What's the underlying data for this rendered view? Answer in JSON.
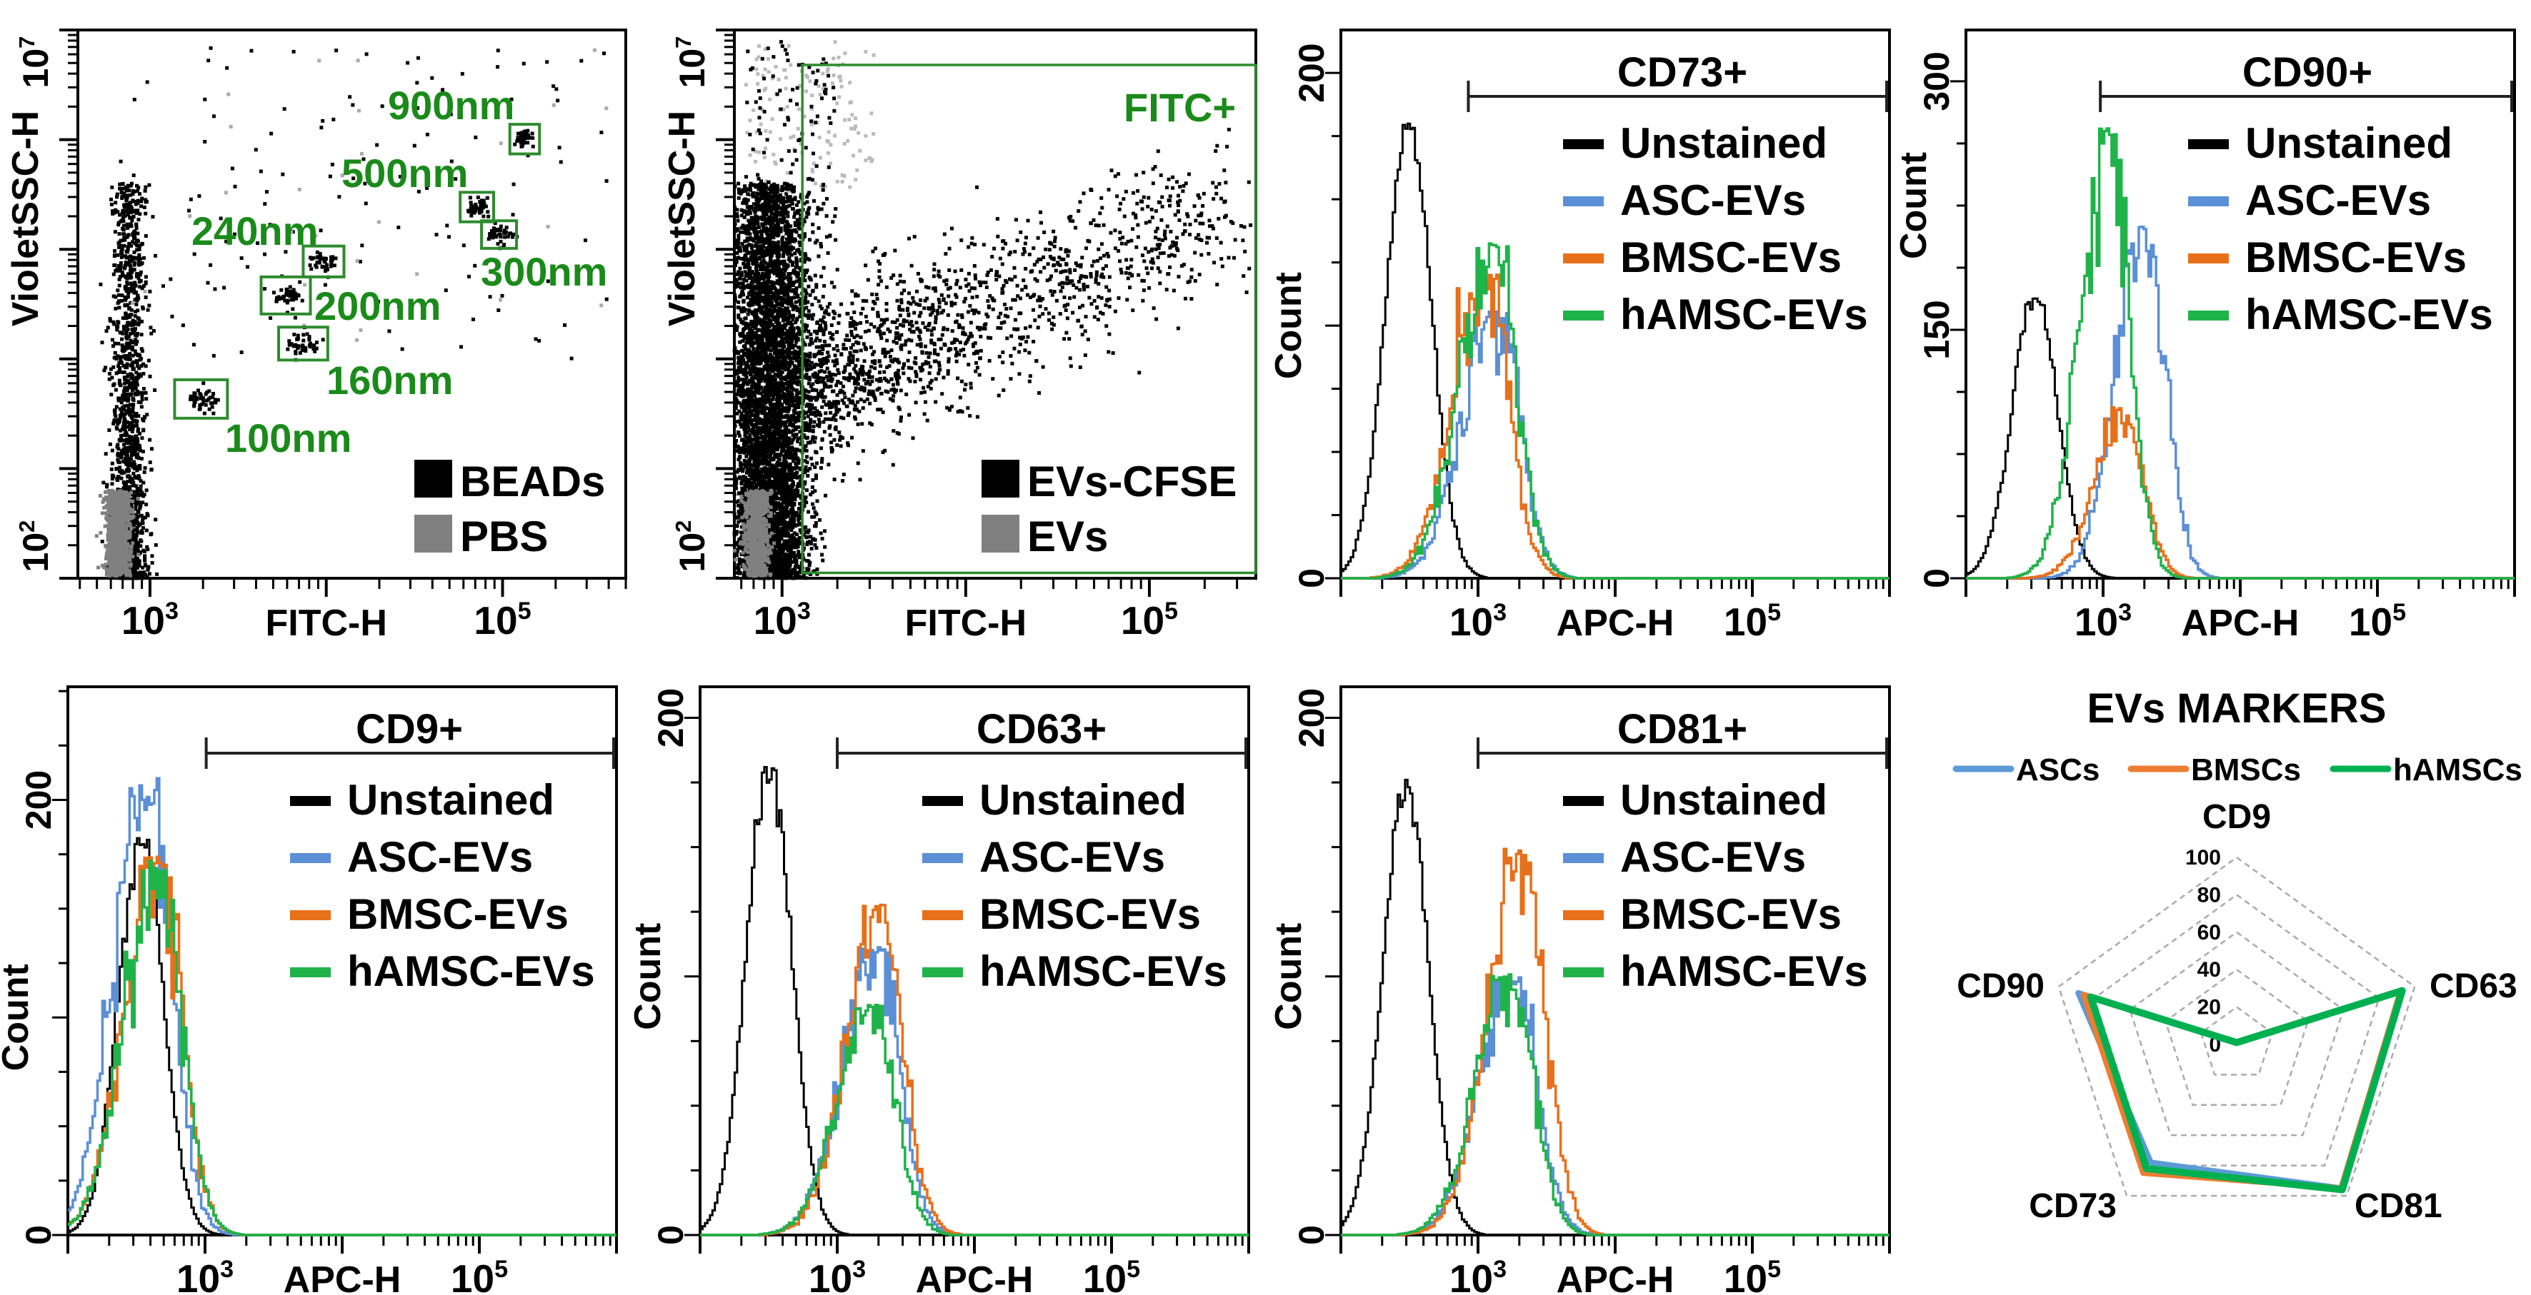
{
  "colors": {
    "unstained": "#000000",
    "asc": "#5b8fd6",
    "bmsc": "#e8701a",
    "hamsc": "#1fb34a",
    "gate": "#2e8b2e",
    "gate_text": "#1a8a1a",
    "beads": "#000000",
    "pbs": "#808080",
    "radar_asc": "#5b9bd5",
    "radar_bmsc": "#ed7d31",
    "radar_hamsc": "#00b050"
  },
  "chart_data": [
    {
      "id": "beads",
      "type": "scatter",
      "xlabel": "FITC-H",
      "ylabel": "VioletSSC-H",
      "xscale": "log",
      "yscale": "log",
      "xlim": [
        390,
        500000
      ],
      "ylim": [
        100,
        10000000
      ],
      "x_ticks": [
        {
          "value": 1000,
          "base": "10",
          "exp": "3"
        },
        {
          "value": 100000,
          "base": "10",
          "exp": "5"
        }
      ],
      "y_ticks": [
        {
          "value": 100,
          "base": "10",
          "exp": "2"
        },
        {
          "value": 10000000,
          "base": "10",
          "exp": "7"
        }
      ],
      "gates": [
        {
          "label": "900nm",
          "x": [
            110000,
            162000
          ],
          "y": [
            741000,
            1380000
          ]
        },
        {
          "label": "500nm",
          "x": [
            57500,
            89000
          ],
          "y": [
            178000,
            331000
          ]
        },
        {
          "label": "240nm",
          "x": [
            7400,
            12600
          ],
          "y": [
            56000,
            107000
          ]
        },
        {
          "label": "300nm",
          "x": [
            76000,
            120000
          ],
          "y": [
            102000,
            182000
          ]
        },
        {
          "label": "200nm",
          "x": [
            4270,
            8130
          ],
          "y": [
            25700,
            56000
          ]
        },
        {
          "label": "160nm",
          "x": [
            5370,
            10200
          ],
          "y": [
            9770,
            19500
          ]
        },
        {
          "label": "100nm",
          "x": [
            1380,
            2750
          ],
          "y": [
            2880,
            6460
          ]
        }
      ],
      "legend": [
        {
          "label": "BEADs",
          "color": "#000000"
        },
        {
          "label": "PBS",
          "color": "#808080"
        }
      ]
    },
    {
      "id": "evs",
      "type": "scatter",
      "xlabel": "FITC-H",
      "ylabel": "VioletSSC-H",
      "xscale": "log",
      "yscale": "log",
      "xlim": [
        550,
        380000
      ],
      "ylim": [
        100,
        10000000
      ],
      "x_ticks": [
        {
          "value": 1000,
          "base": "10",
          "exp": "3"
        },
        {
          "value": 100000,
          "base": "10",
          "exp": "5"
        }
      ],
      "y_ticks": [
        {
          "value": 100,
          "base": "10",
          "exp": "2"
        },
        {
          "value": 10000000,
          "base": "10",
          "exp": "7"
        }
      ],
      "gates": [
        {
          "label": "FITC+",
          "x": [
            1290,
            380000
          ],
          "y": [
            112,
            4800000
          ]
        }
      ],
      "legend": [
        {
          "label": "EVs-CFSE",
          "color": "#000000"
        },
        {
          "label": "EVs",
          "color": "#808080"
        }
      ]
    },
    {
      "id": "cd73",
      "type": "histogram",
      "gate_label": "CD73+",
      "gate_from": 850,
      "xlabel": "APC-H",
      "ylabel": "Count",
      "xscale": "log",
      "xlim": [
        100,
        1000000
      ],
      "ylim": [
        0,
        217
      ],
      "y_ticks": [
        0,
        200
      ],
      "y_minor_step": 25,
      "y_major_step": 100,
      "x_ticks": [
        {
          "value": 1000,
          "base": "10",
          "exp": "3"
        },
        {
          "value": 100000,
          "base": "10",
          "exp": "5"
        }
      ],
      "series": [
        {
          "name": "Unstained",
          "color": "#000000",
          "peak_at": 309,
          "peak_count": 180
        },
        {
          "name": "ASC-EVs",
          "color": "#5b8fd6",
          "peak_at": 1320,
          "peak_count": 106
        },
        {
          "name": "BMSC-EVs",
          "color": "#e8701a",
          "peak_at": 1120,
          "peak_count": 122
        },
        {
          "name": "hAMSC-EVs",
          "color": "#1fb34a",
          "peak_at": 1260,
          "peak_count": 133
        }
      ]
    },
    {
      "id": "cd90",
      "type": "histogram",
      "gate_label": "CD90+",
      "gate_from": 955,
      "xlabel": "APC-H",
      "ylabel": "Count",
      "xscale": "log",
      "xlim": [
        100,
        1000000
      ],
      "ylim": [
        0,
        331
      ],
      "y_ticks": [
        0,
        150,
        300
      ],
      "y_minor_step": 37.5,
      "y_major_step": 150,
      "x_ticks": [
        {
          "value": 1000,
          "base": "10",
          "exp": "3"
        },
        {
          "value": 100000,
          "base": "10",
          "exp": "5"
        }
      ],
      "series": [
        {
          "name": "Unstained",
          "color": "#000000",
          "peak_at": 316,
          "peak_count": 173
        },
        {
          "name": "ASC-EVs",
          "color": "#5b8fd6",
          "peak_at": 1950,
          "peak_count": 217
        },
        {
          "name": "BMSC-EVs",
          "color": "#e8701a",
          "peak_at": 1350,
          "peak_count": 104
        },
        {
          "name": "hAMSC-EVs",
          "color": "#1fb34a",
          "peak_at": 1070,
          "peak_count": 272
        }
      ]
    },
    {
      "id": "cd9",
      "type": "histogram",
      "gate_label": "CD9+",
      "gate_from": 1020,
      "xlabel": "APC-H",
      "ylabel": "Count",
      "xscale": "log",
      "xlim": [
        100,
        1000000
      ],
      "ylim": [
        0,
        252
      ],
      "y_ticks": [
        0,
        200
      ],
      "y_minor_step": 25,
      "y_major_step": 100,
      "x_ticks": [
        {
          "value": 1000,
          "base": "10",
          "exp": "3"
        },
        {
          "value": 100000,
          "base": "10",
          "exp": "5"
        }
      ],
      "series": [
        {
          "name": "Unstained",
          "color": "#000000",
          "peak_at": 339,
          "peak_count": 183
        },
        {
          "name": "ASC-EVs",
          "color": "#5b8fd6",
          "peak_at": 380,
          "peak_count": 211
        },
        {
          "name": "BMSC-EVs",
          "color": "#e8701a",
          "peak_at": 447,
          "peak_count": 174
        },
        {
          "name": "hAMSC-EVs",
          "color": "#1fb34a",
          "peak_at": 447,
          "peak_count": 172
        }
      ]
    },
    {
      "id": "cd63",
      "type": "histogram",
      "gate_label": "CD63+",
      "gate_from": 1000,
      "xlabel": "APC-H",
      "ylabel": "Count",
      "xscale": "log",
      "xlim": [
        100,
        1000000
      ],
      "ylim": [
        0,
        212
      ],
      "y_ticks": [
        0,
        200
      ],
      "y_minor_step": 25,
      "y_major_step": 100,
      "x_ticks": [
        {
          "value": 1000,
          "base": "10",
          "exp": "3"
        },
        {
          "value": 100000,
          "base": "10",
          "exp": "5"
        }
      ],
      "series": [
        {
          "name": "Unstained",
          "color": "#000000",
          "peak_at": 316,
          "peak_count": 181
        },
        {
          "name": "ASC-EVs",
          "color": "#5b8fd6",
          "peak_at": 1860,
          "peak_count": 112
        },
        {
          "name": "BMSC-EVs",
          "color": "#e8701a",
          "peak_at": 2000,
          "peak_count": 129
        },
        {
          "name": "hAMSC-EVs",
          "color": "#1fb34a",
          "peak_at": 1740,
          "peak_count": 89
        }
      ]
    },
    {
      "id": "cd81",
      "type": "histogram",
      "gate_label": "CD81+",
      "gate_from": 1000,
      "xlabel": "APC-H",
      "ylabel": "Count",
      "xscale": "log",
      "xlim": [
        100,
        1000000
      ],
      "ylim": [
        0,
        212
      ],
      "y_ticks": [
        0,
        200
      ],
      "y_minor_step": 25,
      "y_major_step": 100,
      "x_ticks": [
        {
          "value": 1000,
          "base": "10",
          "exp": "3"
        },
        {
          "value": 100000,
          "base": "10",
          "exp": "5"
        }
      ],
      "series": [
        {
          "name": "Unstained",
          "color": "#000000",
          "peak_at": 295,
          "peak_count": 176
        },
        {
          "name": "ASC-EVs",
          "color": "#5b8fd6",
          "peak_at": 1780,
          "peak_count": 101
        },
        {
          "name": "BMSC-EVs",
          "color": "#e8701a",
          "peak_at": 2040,
          "peak_count": 150
        },
        {
          "name": "hAMSC-EVs",
          "color": "#1fb34a",
          "peak_at": 1660,
          "peak_count": 101
        }
      ]
    },
    {
      "id": "radar",
      "type": "radar",
      "title": "EVs MARKERS",
      "categories": [
        "CD9",
        "CD63",
        "CD81",
        "CD73",
        "CD90"
      ],
      "r_ticks": [
        0,
        20,
        40,
        60,
        80,
        100
      ],
      "rlim": [
        0,
        100
      ],
      "series": [
        {
          "name": "ASCs",
          "color": "#5b9bd5",
          "values": [
            1,
            92,
            95,
            78,
            89
          ]
        },
        {
          "name": "BMSCs",
          "color": "#ed7d31",
          "values": [
            1,
            92,
            95,
            85,
            86
          ]
        },
        {
          "name": "hAMSCs",
          "color": "#00b050",
          "values": [
            1,
            93,
            96,
            82,
            82
          ]
        }
      ]
    }
  ]
}
